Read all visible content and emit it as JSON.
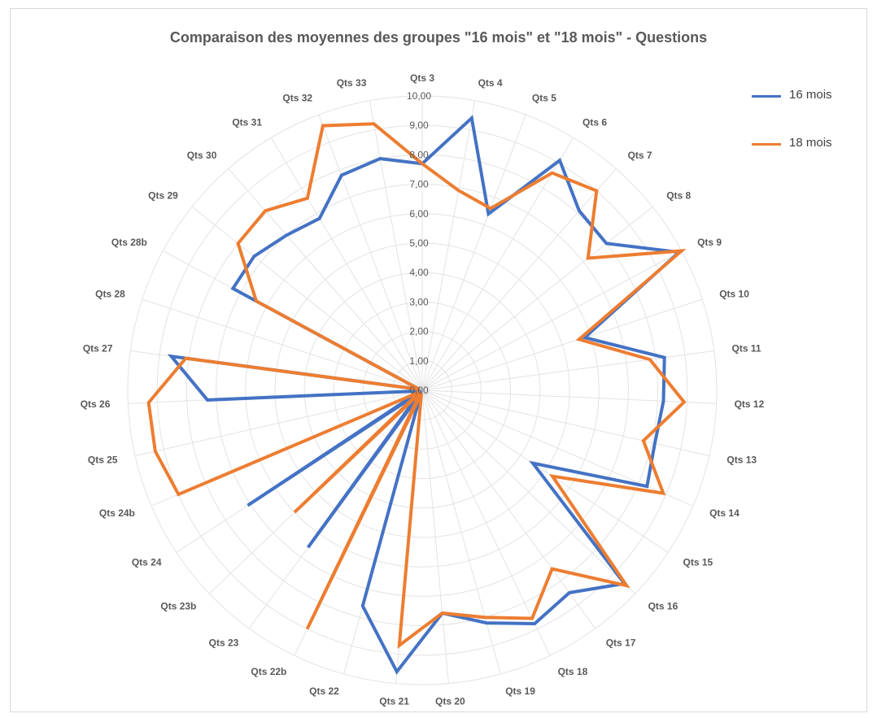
{
  "chart_data": {
    "type": "radar",
    "title": "Comparaison des moyennes des groupes \"16 mois\" et \"18 mois\" - Questions",
    "categories": [
      "Qts 3",
      "Qts 4",
      "Qts 5",
      "Qts 6",
      "Qts 7",
      "Qts 8",
      "Qts 9",
      "Qts 10",
      "Qts 11",
      "Qts 12",
      "Qts 13",
      "Qts 14",
      "Qts 15",
      "Qts 16",
      "Qts 17",
      "Qts 18",
      "Qts 19",
      "Qts 20",
      "Qts 21",
      "Qts 22",
      "Qts 22b",
      "Qts 23",
      "Qts 23b",
      "Qts 24",
      "Qts 24b",
      "Qts 25",
      "Qts 26",
      "Qts 27",
      "Qts 28",
      "Qts 28b",
      "Qts  29",
      "Qts 30",
      "Qts 31",
      "Qts 32",
      "Qts 33"
    ],
    "radial_ticks": [
      "0,00",
      "1,00",
      "2,00",
      "3,00",
      "4,00",
      "5,00",
      "6,00",
      "7,00",
      "8,00",
      "9,00",
      "10,00"
    ],
    "rmin": 0,
    "rmax": 10,
    "series": [
      {
        "name": "16 mois",
        "color": "#4472C4",
        "values": [
          7.7,
          9.4,
          6.4,
          9.1,
          8.1,
          8.0,
          9.9,
          5.8,
          8.3,
          8.2,
          8.1,
          8.3,
          4.5,
          9.5,
          8.5,
          8.8,
          8.2,
          7.6,
          9.6,
          7.6,
          0.1,
          6.6,
          0.1,
          7.1,
          0.1,
          0.1,
          7.3,
          8.6,
          0.1,
          7.3,
          7.3,
          7.0,
          6.8,
          7.8,
          8.0
        ]
      },
      {
        "name": "18 mois",
        "color": "#ED7D31",
        "values": [
          7.7,
          6.9,
          6.6,
          8.6,
          9.0,
          7.2,
          10.0,
          5.6,
          7.8,
          8.9,
          7.7,
          8.9,
          5.3,
          9.6,
          7.5,
          8.6,
          8.0,
          7.6,
          8.7,
          0.1,
          9.0,
          0.1,
          6.0,
          0.1,
          9.0,
          9.3,
          9.3,
          8.1,
          0.1,
          6.4,
          8.0,
          8.1,
          7.6,
          9.6,
          9.2
        ]
      }
    ],
    "legend": "right",
    "grid": true
  }
}
